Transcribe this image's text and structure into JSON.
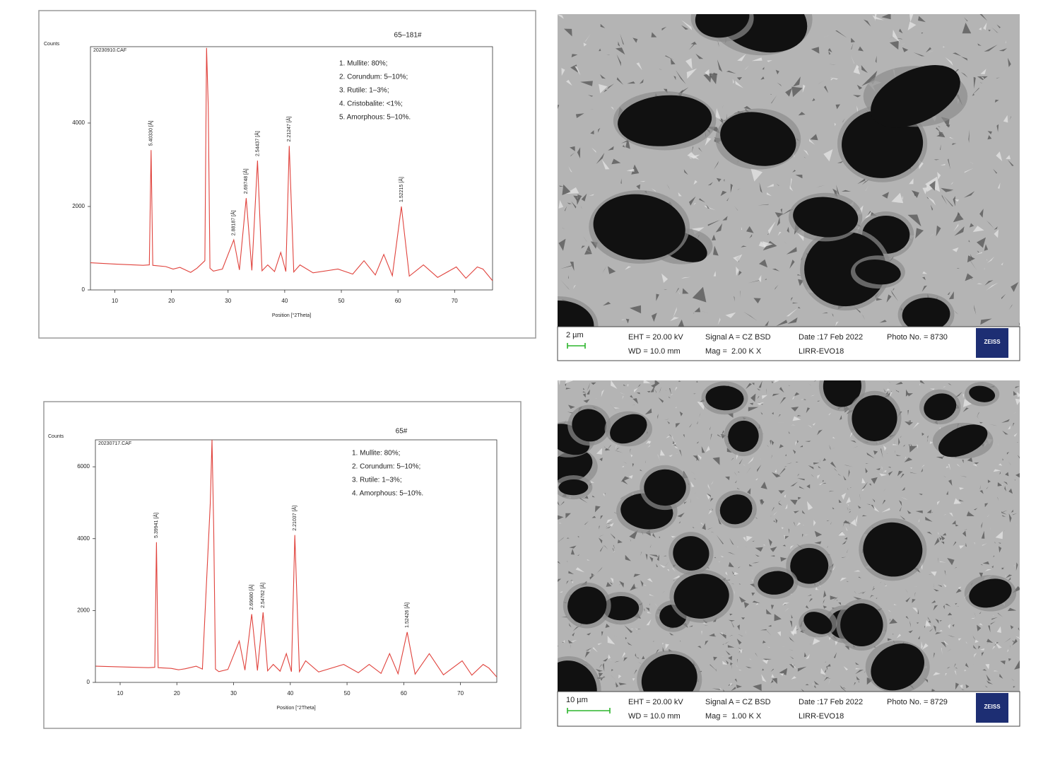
{
  "chart_data": [
    {
      "type": "line",
      "title": "65–181#",
      "file_name": "20230910.CAF",
      "y_label": "Counts",
      "x_label": "Position [°2Theta]",
      "annotations": [
        "1. Mullite: 80%;",
        "2. Corundum: 5–10%;",
        "3. Rutile: 1–3%;",
        "4. Cristobalite: <1%;",
        "5. Amorphous: 5–10%."
      ],
      "color": "#e0423c",
      "x": [
        5.7,
        10,
        15,
        16.1,
        16.4,
        16.7,
        19,
        20.3,
        21.5,
        23.4,
        24.5,
        25.9,
        26.2,
        26.5,
        26.8,
        27.4,
        29,
        31.0,
        32,
        33.2,
        34.2,
        35.2,
        36,
        37.0,
        38.2,
        39.3,
        40.2,
        40.8,
        41.6,
        42.7,
        45,
        49.4,
        52,
        54.0,
        56,
        57.5,
        59,
        60.6,
        62,
        64.5,
        67,
        70.3,
        72,
        74.0,
        75.0,
        76.7
      ],
      "values": [
        650,
        620,
        590,
        600,
        3350,
        590,
        560,
        500,
        540,
        420,
        520,
        700,
        5800,
        4400,
        520,
        450,
        500,
        1200,
        480,
        2200,
        470,
        3100,
        460,
        600,
        440,
        900,
        440,
        3450,
        430,
        600,
        410,
        500,
        380,
        700,
        360,
        850,
        340,
        2000,
        330,
        600,
        300,
        550,
        280,
        550,
        500,
        220
      ],
      "peak_labels": [
        {
          "x": 16.4,
          "y": 3350,
          "label": "5.40330 [Å]"
        },
        {
          "x": 31.0,
          "y": 1200,
          "label": "2.88187 [Å]"
        },
        {
          "x": 33.2,
          "y": 2200,
          "label": "2.69748 [Å]"
        },
        {
          "x": 35.2,
          "y": 3100,
          "label": "2.54437 [Å]"
        },
        {
          "x": 40.8,
          "y": 3450,
          "label": "2.21247 [Å]"
        },
        {
          "x": 60.6,
          "y": 2000,
          "label": "1.52215 [Å]"
        }
      ],
      "xlim": [
        5.7,
        76.7
      ],
      "ylim": [
        0,
        5830
      ],
      "xticks": [
        10,
        20,
        30,
        40,
        50,
        60,
        70
      ],
      "yticks": [
        0,
        2000,
        4000
      ]
    },
    {
      "type": "line",
      "title": "65#",
      "file_name": "20230717.CAF",
      "y_label": "Counts",
      "x_label": "Position [°2Theta]",
      "annotations": [
        "1. Mullite: 80%;",
        "2. Corundum: 5–10%;",
        "3. Rutile: 1–3%;",
        "4. Amorphous: 5–10%."
      ],
      "color": "#e0423c",
      "x": [
        5.7,
        10,
        15,
        16.1,
        16.4,
        16.7,
        19,
        20.3,
        21.5,
        23.4,
        24.5,
        25.9,
        26.2,
        26.5,
        26.8,
        27.4,
        29,
        31.0,
        32,
        33.2,
        34.2,
        35.2,
        36,
        37.0,
        38.2,
        39.3,
        40.2,
        40.8,
        41.6,
        42.7,
        45,
        49.4,
        52,
        53.9,
        56,
        57.5,
        59,
        60.6,
        62,
        64.5,
        67,
        70.3,
        72,
        74.0,
        75.0,
        76.4
      ],
      "values": [
        450,
        430,
        410,
        420,
        3900,
        410,
        390,
        350,
        380,
        450,
        370,
        5000,
        6750,
        4300,
        370,
        300,
        360,
        1150,
        340,
        1900,
        330,
        1950,
        320,
        500,
        310,
        800,
        300,
        4100,
        300,
        600,
        290,
        500,
        270,
        500,
        250,
        800,
        240,
        1400,
        230,
        800,
        210,
        600,
        200,
        500,
        400,
        150
      ],
      "peak_labels": [
        {
          "x": 16.4,
          "y": 3900,
          "label": "5.39941 [Å]"
        },
        {
          "x": 33.2,
          "y": 1900,
          "label": "2.69680 [Å]"
        },
        {
          "x": 35.2,
          "y": 1950,
          "label": "2.54762 [Å]"
        },
        {
          "x": 40.8,
          "y": 4100,
          "label": "2.21037 [Å]"
        },
        {
          "x": 60.6,
          "y": 1400,
          "label": "1.52426 [Å]"
        }
      ],
      "xlim": [
        5.64,
        76.4
      ],
      "ylim": [
        0,
        6750
      ],
      "xticks": [
        10,
        20,
        30,
        40,
        50,
        60,
        70
      ],
      "yticks": [
        0,
        2000,
        4000,
        6000
      ]
    }
  ],
  "sem_images": [
    {
      "scale": "2 µm",
      "eht": "EHT = 20.00 kV",
      "wd": "WD = 10.0 mm",
      "signal": "Signal A = CZ BSD",
      "mag": "Mag =  2.00 K X",
      "date": "Date :17 Feb 2022",
      "instrument": "LIRR-EVO18",
      "photo": "Photo No. = 8730",
      "logo": "ZEISS"
    },
    {
      "scale": "10 µm",
      "eht": "EHT = 20.00 kV",
      "wd": "WD = 10.0 mm",
      "signal": "Signal A = CZ BSD",
      "mag": "Mag =  1.00 K X",
      "date": "Date :17 Feb 2022",
      "instrument": "LIRR-EVO18",
      "photo": "Photo No. = 8729",
      "logo": "ZEISS"
    }
  ]
}
